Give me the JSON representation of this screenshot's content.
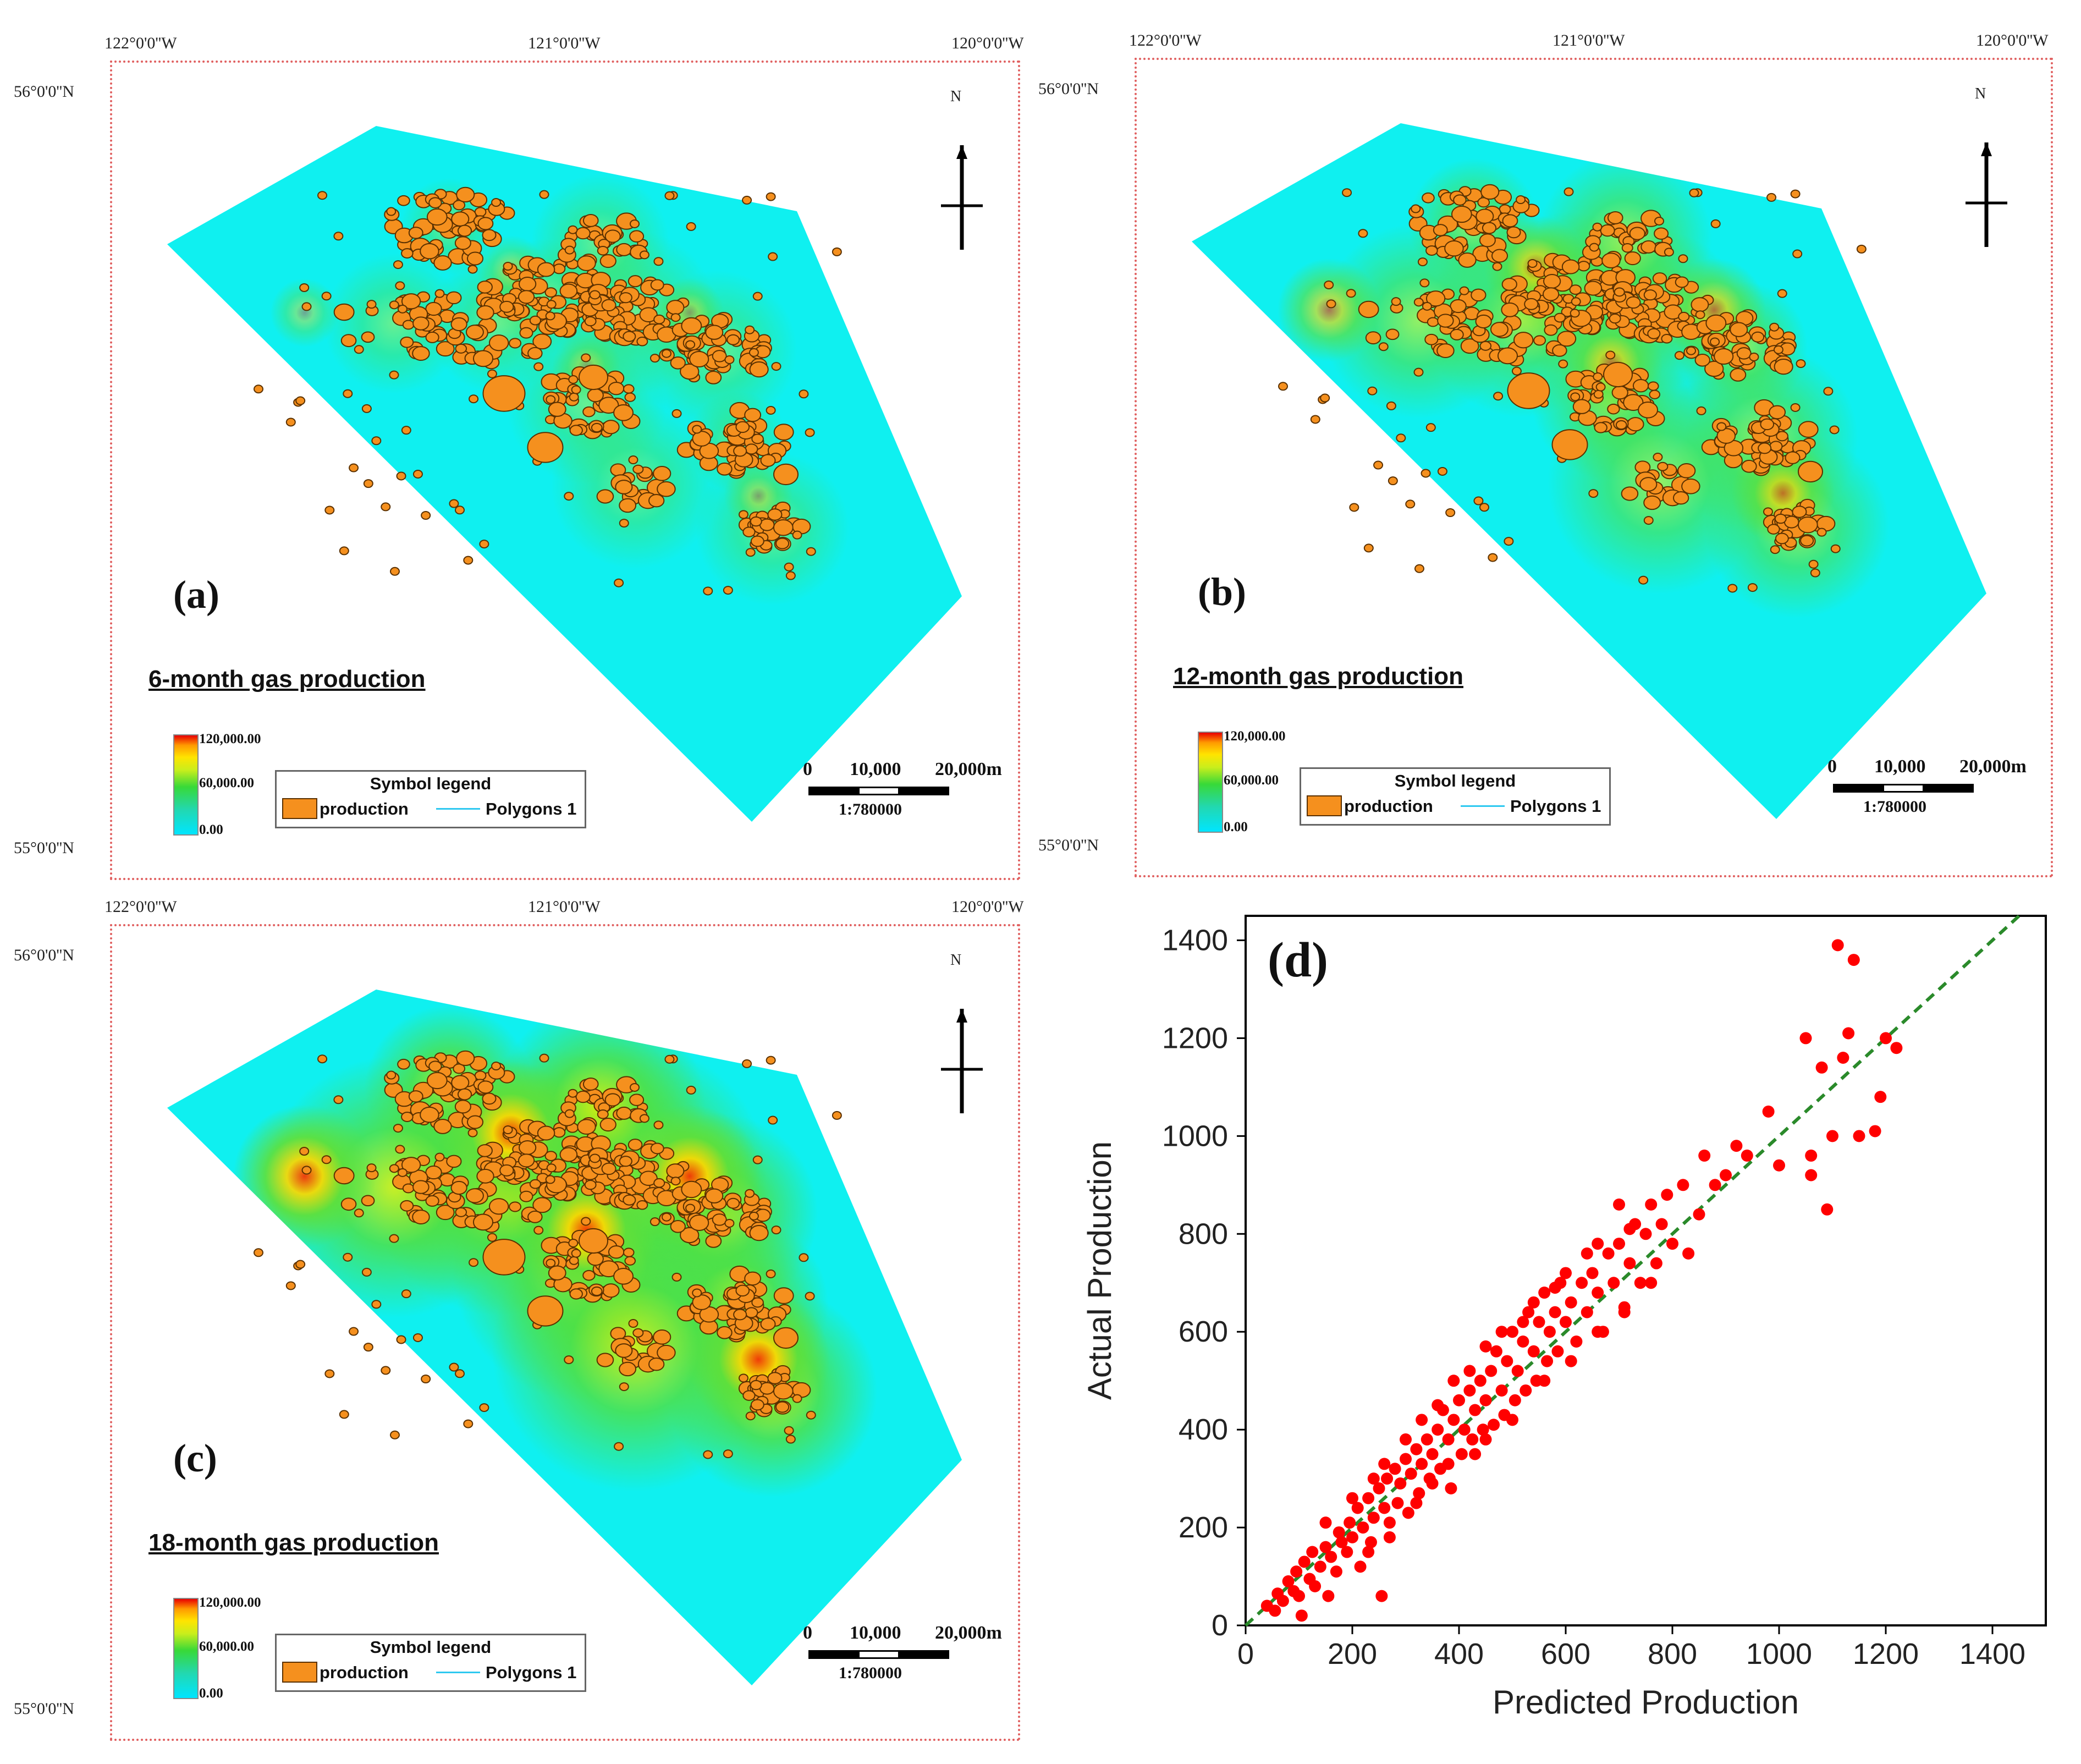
{
  "maps": [
    {
      "letter": "(a)",
      "title": "6-month gas production",
      "lon_labels": [
        "122°0'0''W",
        "121°0'0''W",
        "120°0'0''W"
      ],
      "lat_labels": [
        "56°0'0''N",
        "55°0'0''N"
      ],
      "colorbar": [
        "120,000.00",
        "60,000.00",
        "0.00"
      ],
      "legend_title": "Symbol legend",
      "legend_items": [
        "production",
        "Polygons 1"
      ],
      "scale_ticks": [
        "0",
        "10,000",
        "20,000m"
      ],
      "scale_ratio": "1:780000",
      "north": "N",
      "intensity": 0.25
    },
    {
      "letter": "(b)",
      "title": "12-month gas production",
      "lon_labels": [
        "122°0'0''W",
        "121°0'0''W",
        "120°0'0''W"
      ],
      "lat_labels": [
        "56°0'0''N",
        "55°0'0''N"
      ],
      "colorbar": [
        "120,000.00",
        "60,000.00",
        "0.00"
      ],
      "legend_title": "Symbol legend",
      "legend_items": [
        "production",
        "Polygons 1"
      ],
      "scale_ticks": [
        "0",
        "10,000",
        "20,000m"
      ],
      "scale_ratio": "1:780000",
      "north": "N",
      "intensity": 0.6
    },
    {
      "letter": "(c)",
      "title": "18-month gas production",
      "lon_labels": [
        "122°0'0''W",
        "121°0'0''W",
        "120°0'0''W"
      ],
      "lat_labels": [
        "56°0'0''N",
        "55°0'0''N"
      ],
      "colorbar": [
        "120,000.00",
        "60,000.00",
        "0.00"
      ],
      "legend_title": "Symbol legend",
      "legend_items": [
        "production",
        "Polygons 1"
      ],
      "scale_ticks": [
        "0",
        "10,000",
        "20,000m"
      ],
      "scale_ratio": "1:780000",
      "north": "N",
      "intensity": 1.0
    }
  ],
  "colors": {
    "polygon_fill": "#0ff0f0",
    "well_fill": "#f5901e",
    "well_stroke": "#5a3000",
    "scatter": "#ff0000",
    "fit_line": "#2a8a2a",
    "frame": "#e06060"
  },
  "chart_data": {
    "type": "scatter",
    "letter": "(d)",
    "xlabel": "Predicted Production",
    "ylabel": "Actual Production",
    "xlim": [
      0,
      1500
    ],
    "ylim": [
      0,
      1450
    ],
    "xticks": [
      0,
      200,
      400,
      600,
      800,
      1000,
      1200,
      1400
    ],
    "yticks": [
      0,
      200,
      400,
      600,
      800,
      1000,
      1200,
      1400
    ],
    "reference_line": "y = x",
    "points": [
      [
        40,
        40
      ],
      [
        55,
        30
      ],
      [
        60,
        65
      ],
      [
        70,
        50
      ],
      [
        80,
        90
      ],
      [
        90,
        70
      ],
      [
        95,
        110
      ],
      [
        100,
        60
      ],
      [
        105,
        20
      ],
      [
        110,
        130
      ],
      [
        120,
        95
      ],
      [
        125,
        150
      ],
      [
        130,
        80
      ],
      [
        140,
        120
      ],
      [
        150,
        160
      ],
      [
        155,
        60
      ],
      [
        160,
        140
      ],
      [
        170,
        110
      ],
      [
        175,
        190
      ],
      [
        180,
        170
      ],
      [
        190,
        150
      ],
      [
        195,
        210
      ],
      [
        200,
        180
      ],
      [
        210,
        240
      ],
      [
        215,
        120
      ],
      [
        220,
        200
      ],
      [
        230,
        260
      ],
      [
        235,
        170
      ],
      [
        240,
        220
      ],
      [
        250,
        280
      ],
      [
        255,
        60
      ],
      [
        260,
        240
      ],
      [
        265,
        300
      ],
      [
        270,
        210
      ],
      [
        280,
        320
      ],
      [
        285,
        250
      ],
      [
        290,
        290
      ],
      [
        300,
        340
      ],
      [
        305,
        230
      ],
      [
        310,
        310
      ],
      [
        320,
        360
      ],
      [
        325,
        270
      ],
      [
        330,
        330
      ],
      [
        340,
        380
      ],
      [
        345,
        300
      ],
      [
        350,
        350
      ],
      [
        360,
        400
      ],
      [
        365,
        320
      ],
      [
        370,
        440
      ],
      [
        380,
        380
      ],
      [
        385,
        280
      ],
      [
        390,
        420
      ],
      [
        400,
        460
      ],
      [
        405,
        350
      ],
      [
        410,
        400
      ],
      [
        420,
        480
      ],
      [
        425,
        380
      ],
      [
        430,
        440
      ],
      [
        440,
        500
      ],
      [
        445,
        400
      ],
      [
        450,
        460
      ],
      [
        460,
        520
      ],
      [
        465,
        410
      ],
      [
        470,
        560
      ],
      [
        480,
        480
      ],
      [
        485,
        430
      ],
      [
        490,
        540
      ],
      [
        500,
        600
      ],
      [
        505,
        460
      ],
      [
        510,
        520
      ],
      [
        520,
        580
      ],
      [
        525,
        480
      ],
      [
        530,
        640
      ],
      [
        540,
        560
      ],
      [
        545,
        500
      ],
      [
        550,
        620
      ],
      [
        560,
        680
      ],
      [
        565,
        540
      ],
      [
        570,
        600
      ],
      [
        580,
        640
      ],
      [
        585,
        560
      ],
      [
        590,
        700
      ],
      [
        600,
        620
      ],
      [
        610,
        660
      ],
      [
        620,
        580
      ],
      [
        630,
        700
      ],
      [
        640,
        640
      ],
      [
        650,
        720
      ],
      [
        660,
        680
      ],
      [
        670,
        600
      ],
      [
        680,
        760
      ],
      [
        690,
        700
      ],
      [
        700,
        780
      ],
      [
        710,
        650
      ],
      [
        720,
        740
      ],
      [
        730,
        820
      ],
      [
        740,
        700
      ],
      [
        750,
        800
      ],
      [
        760,
        860
      ],
      [
        770,
        740
      ],
      [
        780,
        820
      ],
      [
        790,
        880
      ],
      [
        800,
        780
      ],
      [
        820,
        900
      ],
      [
        830,
        760
      ],
      [
        850,
        840
      ],
      [
        860,
        960
      ],
      [
        880,
        900
      ],
      [
        900,
        920
      ],
      [
        920,
        980
      ],
      [
        940,
        960
      ],
      [
        980,
        1050
      ],
      [
        1000,
        940
      ],
      [
        1050,
        1200
      ],
      [
        1060,
        920
      ],
      [
        1080,
        1140
      ],
      [
        1090,
        850
      ],
      [
        1100,
        1000
      ],
      [
        1110,
        1390
      ],
      [
        1120,
        1160
      ],
      [
        1130,
        1210
      ],
      [
        1140,
        1360
      ],
      [
        1150,
        1000
      ],
      [
        1180,
        1010
      ],
      [
        1190,
        1080
      ],
      [
        1200,
        1200
      ],
      [
        1220,
        1180
      ],
      [
        1060,
        960
      ],
      [
        350,
        290
      ],
      [
        430,
        350
      ],
      [
        270,
        180
      ],
      [
        320,
        250
      ],
      [
        380,
        330
      ],
      [
        450,
        380
      ],
      [
        500,
        420
      ],
      [
        560,
        500
      ],
      [
        610,
        540
      ],
      [
        660,
        600
      ],
      [
        710,
        640
      ],
      [
        760,
        700
      ],
      [
        240,
        300
      ],
      [
        300,
        380
      ],
      [
        360,
        450
      ],
      [
        420,
        520
      ],
      [
        480,
        600
      ],
      [
        540,
        660
      ],
      [
        600,
        720
      ],
      [
        660,
        780
      ],
      [
        230,
        150
      ],
      [
        150,
        210
      ],
      [
        200,
        260
      ],
      [
        260,
        330
      ],
      [
        330,
        420
      ],
      [
        390,
        500
      ],
      [
        450,
        570
      ],
      [
        520,
        620
      ],
      [
        580,
        690
      ],
      [
        640,
        760
      ],
      [
        700,
        860
      ],
      [
        720,
        810
      ]
    ]
  }
}
